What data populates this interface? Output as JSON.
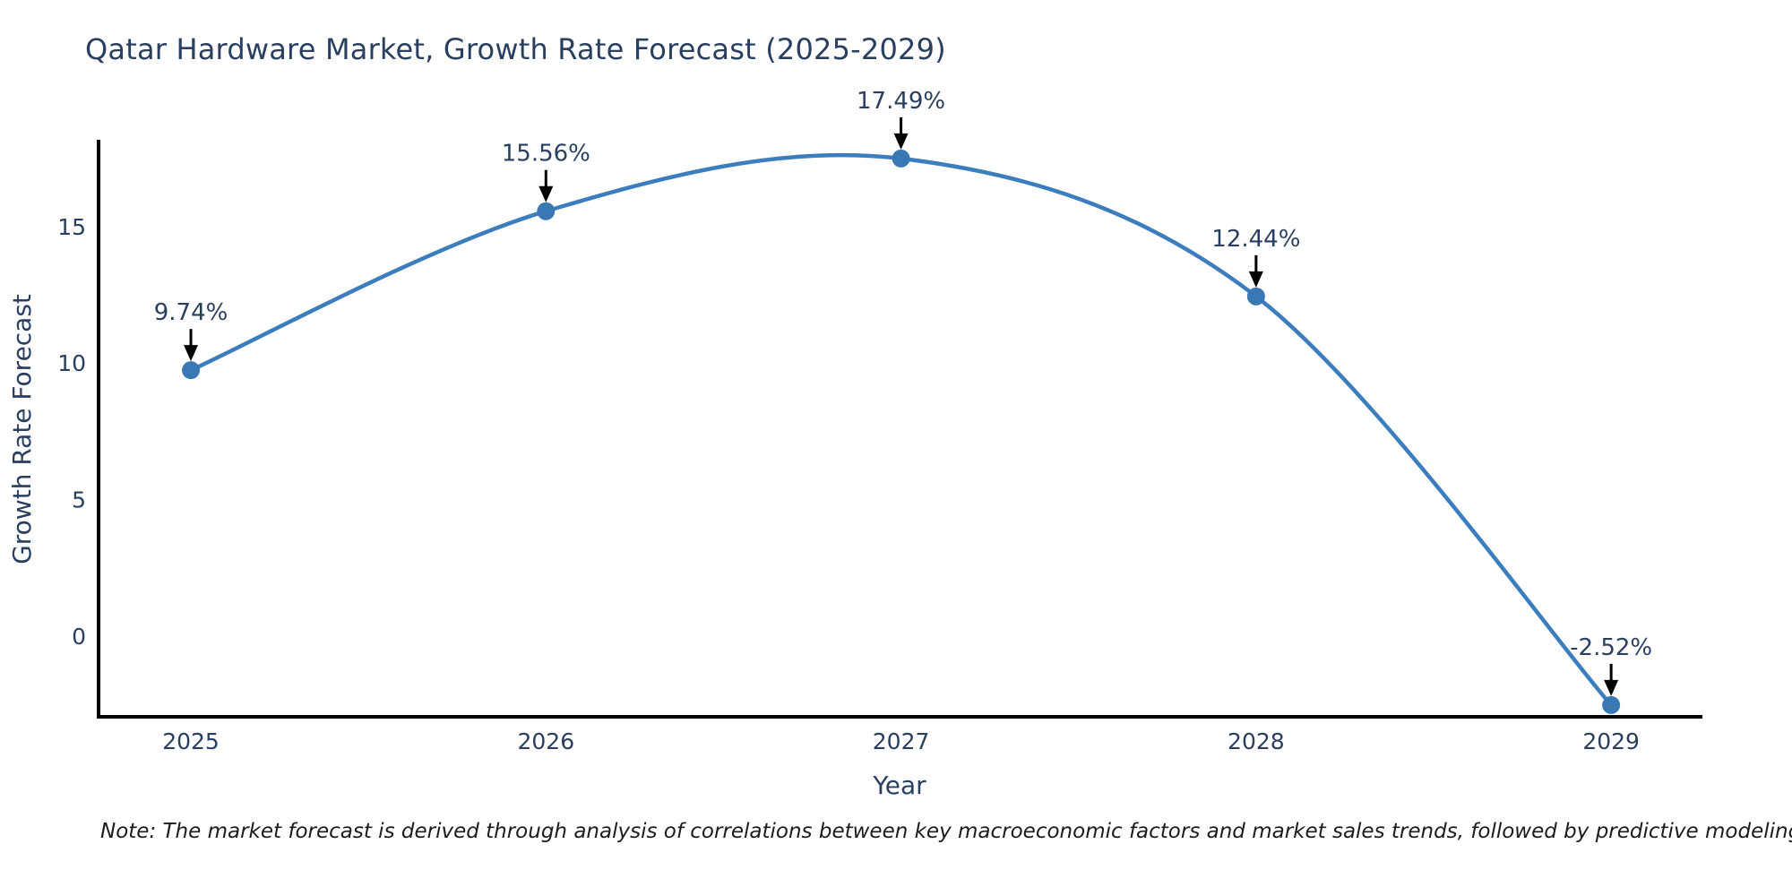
{
  "chart_data": {
    "type": "line",
    "title": "Qatar Hardware Market, Growth Rate Forecast (2025-2029)",
    "xlabel": "Year",
    "ylabel": "Growth Rate Forecast",
    "x": [
      2025,
      2026,
      2027,
      2028,
      2029
    ],
    "values": [
      9.74,
      15.56,
      17.49,
      12.44,
      -2.52
    ],
    "point_labels": [
      "9.74%",
      "15.56%",
      "17.49%",
      "12.44%",
      "-2.52%"
    ],
    "series_name": "Growth Rate Forecast",
    "x_ticks": [
      "2025",
      "2026",
      "2027",
      "2028",
      "2029"
    ],
    "y_ticks": [
      0,
      5,
      10,
      15
    ],
    "xlim": [
      2024.74,
      2029.252
    ],
    "ylim": [
      -2.95,
      18.11
    ],
    "line_shape": "spline",
    "grid": false,
    "legend": "none",
    "colors": {
      "line": "#3c7dbd",
      "marker": "#3a78b4",
      "axis_line": "#000000",
      "text": "#2a3f5f",
      "annotation_arrow": "#000000",
      "note_text": "#1c1c1c",
      "background": "#ffffff"
    }
  },
  "note": {
    "text": "Note: The market forecast is derived through analysis of correlations between key macroeconomic factors and market sales trends, followed by predictive modeling to project future sales"
  }
}
